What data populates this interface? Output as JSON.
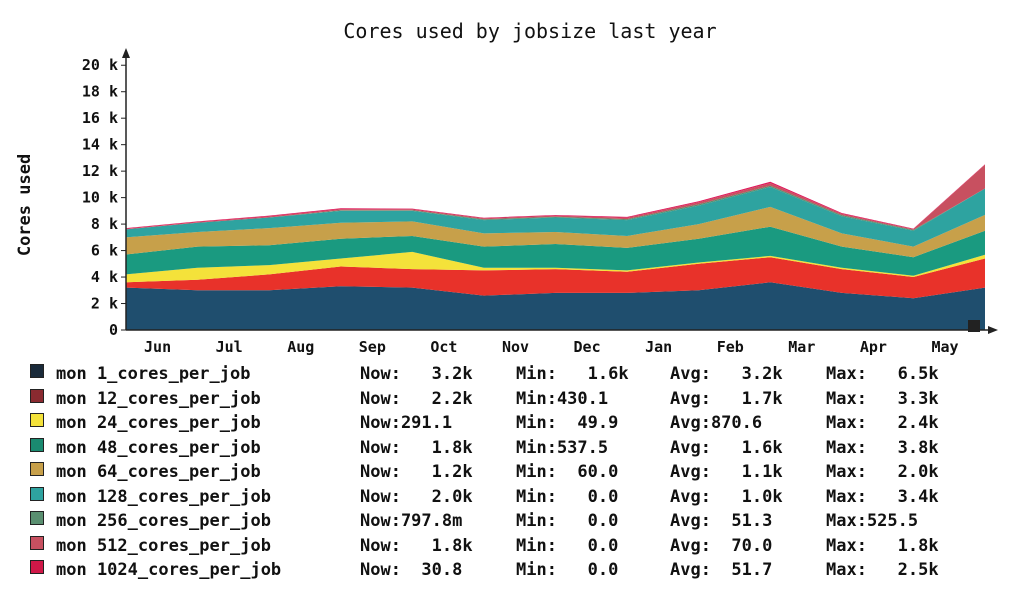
{
  "chart_data": {
    "type": "area",
    "stacked": true,
    "title": "Cores used by jobsize last year",
    "ylabel": "Cores used",
    "xlabel": "",
    "ylim": [
      0,
      21000
    ],
    "y_ticks": [
      {
        "value": 0,
        "label": "0"
      },
      {
        "value": 2000,
        "label": "2 k"
      },
      {
        "value": 4000,
        "label": "4 k"
      },
      {
        "value": 6000,
        "label": "6 k"
      },
      {
        "value": 8000,
        "label": "8 k"
      },
      {
        "value": 10000,
        "label": "10 k"
      },
      {
        "value": 12000,
        "label": "12 k"
      },
      {
        "value": 14000,
        "label": "14 k"
      },
      {
        "value": 16000,
        "label": "16 k"
      },
      {
        "value": 18000,
        "label": "18 k"
      },
      {
        "value": 20000,
        "label": "20 k"
      }
    ],
    "x": [
      "May",
      "Jun",
      "Jul",
      "Aug",
      "Sep",
      "Oct",
      "Nov",
      "Dec",
      "Jan",
      "Feb",
      "Mar",
      "Apr",
      "May"
    ],
    "x_tick_labels": [
      "Jun",
      "Jul",
      "Aug",
      "Sep",
      "Oct",
      "Nov",
      "Dec",
      "Jan",
      "Feb",
      "Mar",
      "Apr",
      "May"
    ],
    "grid": false,
    "series": [
      {
        "name": "1_cores_per_job",
        "color": "#1f4e6e",
        "values": [
          3200,
          3000,
          3000,
          3300,
          3200,
          2600,
          2800,
          2800,
          3000,
          3600,
          2800,
          2400,
          3200
        ]
      },
      {
        "name": "12_cores_per_job",
        "color": "#e8322a",
        "values": [
          400,
          800,
          1200,
          1500,
          1400,
          1900,
          1800,
          1600,
          2000,
          1900,
          1800,
          1600,
          2200
        ]
      },
      {
        "name": "24_cores_per_job",
        "color": "#f4e23a",
        "values": [
          600,
          900,
          700,
          600,
          1300,
          200,
          100,
          100,
          100,
          100,
          100,
          100,
          291.1
        ]
      },
      {
        "name": "48_cores_per_job",
        "color": "#1a9a80",
        "values": [
          1500,
          1600,
          1500,
          1500,
          1200,
          1600,
          1800,
          1700,
          1800,
          2200,
          1600,
          1400,
          1800
        ]
      },
      {
        "name": "64_cores_per_job",
        "color": "#c7a04a",
        "values": [
          1300,
          1100,
          1300,
          1200,
          1100,
          1000,
          900,
          900,
          1100,
          1500,
          1000,
          800,
          1200
        ]
      },
      {
        "name": "128_cores_per_job",
        "color": "#2ea3a0",
        "values": [
          600,
          700,
          800,
          900,
          800,
          1000,
          1100,
          1200,
          1400,
          1500,
          1300,
          1200,
          2000
        ]
      },
      {
        "name": "256_cores_per_job",
        "color": "#5a8f70",
        "values": [
          0,
          0,
          0,
          50,
          50,
          60,
          60,
          80,
          100,
          100,
          80,
          60,
          0.7978
        ]
      },
      {
        "name": "512_cores_per_job",
        "color": "#c85060",
        "values": [
          50,
          60,
          80,
          80,
          70,
          80,
          80,
          100,
          150,
          200,
          100,
          60,
          1800
        ]
      },
      {
        "name": "1024_cores_per_job",
        "color": "#e0185a",
        "values": [
          50,
          40,
          60,
          60,
          50,
          40,
          50,
          60,
          80,
          100,
          60,
          40,
          30.8
        ]
      }
    ]
  },
  "legend": {
    "items": [
      {
        "label": "mon 1_cores_per_job",
        "now": "Now:   3.2k",
        "min": "Min:   1.6k",
        "avg": "Avg:   3.2k",
        "max": "Max:   6.5k",
        "color": "#1a2a3a"
      },
      {
        "label": "mon 12_cores_per_job",
        "now": "Now:   2.2k",
        "min": "Min:430.1",
        "avg": "Avg:   1.7k",
        "max": "Max:   3.3k",
        "color": "#8a2a30"
      },
      {
        "label": "mon 24_cores_per_job",
        "now": "Now:291.1",
        "min": "Min:  49.9",
        "avg": "Avg:870.6",
        "max": "Max:   2.4k",
        "color": "#f4e23a"
      },
      {
        "label": "mon 48_cores_per_job",
        "now": "Now:   1.8k",
        "min": "Min:537.5",
        "avg": "Avg:   1.6k",
        "max": "Max:   3.8k",
        "color": "#1a8a70"
      },
      {
        "label": "mon 64_cores_per_job",
        "now": "Now:   1.2k",
        "min": "Min:  60.0",
        "avg": "Avg:   1.1k",
        "max": "Max:   2.0k",
        "color": "#c7a04a"
      },
      {
        "label": "mon 128_cores_per_job",
        "now": "Now:   2.0k",
        "min": "Min:   0.0",
        "avg": "Avg:   1.0k",
        "max": "Max:   3.4k",
        "color": "#2ea3a0"
      },
      {
        "label": "mon 256_cores_per_job",
        "now": "Now:797.8m",
        "min": "Min:   0.0",
        "avg": "Avg:  51.3",
        "max": "Max:525.5",
        "color": "#5a8f70"
      },
      {
        "label": "mon 512_cores_per_job",
        "now": "Now:   1.8k",
        "min": "Min:   0.0",
        "avg": "Avg:  70.0",
        "max": "Max:   1.8k",
        "color": "#c85060"
      },
      {
        "label": "mon 1024_cores_per_job",
        "now": "Now:  30.8",
        "min": "Min:   0.0",
        "avg": "Avg:  51.7",
        "max": "Max:   2.5k",
        "color": "#d01848"
      }
    ]
  }
}
